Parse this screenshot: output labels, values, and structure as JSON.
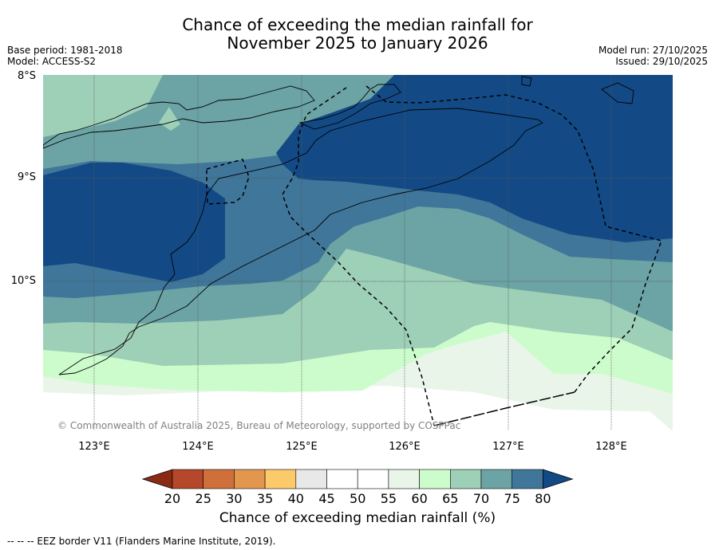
{
  "title_line1": "Chance of exceeding the median rainfall for",
  "title_line2": "November 2025 to January 2026",
  "base_period": "Base period: 1981-2018",
  "model": "Model: ACCESS-S2",
  "model_run": "Model run: 27/10/2025",
  "issued": "Issued: 29/10/2025",
  "lat_labels": [
    "8°S",
    "9°S",
    "10°S"
  ],
  "lon_labels": [
    "123°E",
    "124°E",
    "125°E",
    "126°E",
    "127°E",
    "128°E"
  ],
  "copyright": "© Commonwealth of Australia 2025, Bureau of Meteorology, supported by COSPPac",
  "colorbar": {
    "ticks": [
      "20",
      "25",
      "30",
      "35",
      "40",
      "45",
      "50",
      "55",
      "60",
      "65",
      "70",
      "75",
      "80"
    ],
    "label": "Chance of exceeding median rainfall (%)",
    "colors": [
      "#8b2a14",
      "#b5472a",
      "#cf6f3a",
      "#e3964e",
      "#fdca6b",
      "#e8e8e8",
      "#ffffff",
      "#ffffff",
      "#eaf5ea",
      "#ccfccc",
      "#9ecfb7",
      "#6ca3a5",
      "#3f7699",
      "#134a85"
    ]
  },
  "footnote": "--  --  -- EEZ border V11 (Flanders Marine Institute, 2019)."
}
